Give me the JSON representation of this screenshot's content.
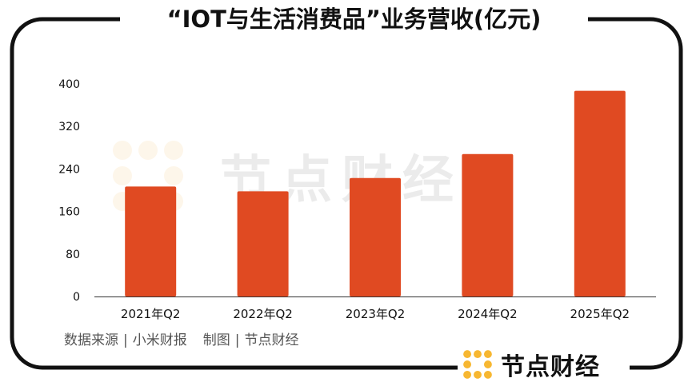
{
  "title": "“IOT与生活消费品”业务营收(亿元)",
  "source": {
    "data_source": "数据来源",
    "data_source_value": "小米财报",
    "made_by": "制图",
    "made_by_value": "节点财经"
  },
  "brand": {
    "name": "节点财经",
    "icon": "dots-grid-logo-icon",
    "color": "#F7B731"
  },
  "watermark": {
    "text": "节点财经"
  },
  "colors": {
    "bar": "#E04A22",
    "frame": "#111111"
  },
  "chart_data": {
    "type": "bar",
    "categories": [
      "2021年Q2",
      "2022年Q2",
      "2023年Q2",
      "2024年Q2",
      "2025年Q2"
    ],
    "values": [
      207,
      198,
      223,
      268,
      387
    ],
    "ylim": [
      0,
      400
    ],
    "yticks": [
      0,
      80,
      160,
      240,
      320,
      400
    ],
    "grid": false,
    "legend": "none"
  }
}
